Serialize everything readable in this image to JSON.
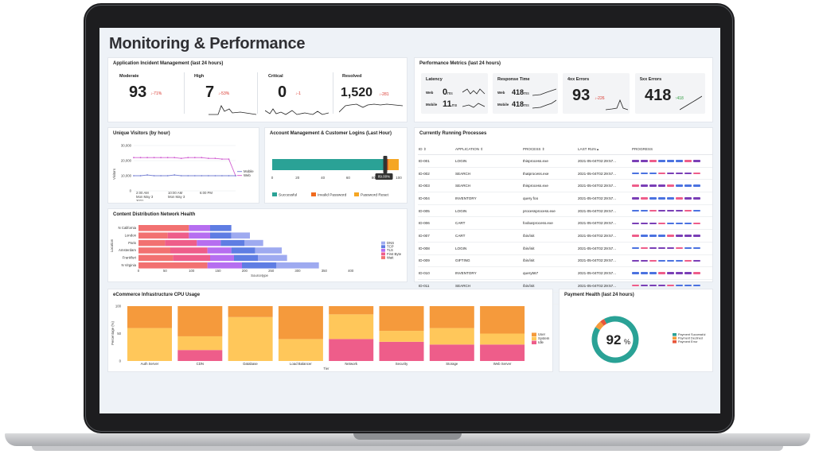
{
  "title": "Monitoring & Performance",
  "incident": {
    "title": "Application Incident Management (last 24 hours)",
    "kpis": [
      {
        "label": "Moderate",
        "value": "93",
        "delta": "-71%"
      },
      {
        "label": "High",
        "value": "7",
        "delta": "-53%"
      },
      {
        "label": "Critical",
        "value": "0",
        "delta": "-1"
      },
      {
        "label": "Resolved",
        "value": "1,520",
        "delta": "-281"
      }
    ]
  },
  "perf": {
    "title": "Performance Metrics (last 24 hours)",
    "latency": {
      "label": "Latency",
      "rows": [
        {
          "name": "Web",
          "value": "0",
          "unit": "ms"
        },
        {
          "name": "Mobile",
          "value": "11",
          "unit": "ms"
        }
      ]
    },
    "response": {
      "label": "Response Time",
      "rows": [
        {
          "name": "Web",
          "value": "418",
          "unit": "ms"
        },
        {
          "name": "Mobile",
          "value": "418",
          "unit": "ms"
        }
      ]
    },
    "errors4xx": {
      "label": "4xx Errors",
      "value": "93",
      "delta": "-226"
    },
    "errors5xx": {
      "label": "5xx Errors",
      "value": "418",
      "delta": "418"
    }
  },
  "visitors": {
    "title": "Unique Visitors (by hour)",
    "ylabel": "Visitors",
    "yticks": [
      "30,000",
      "20,000",
      "10,000",
      "0"
    ],
    "xticks": [
      {
        "l1": "2:00 AM",
        "l2": "Mon May 3",
        "l3": "2021"
      },
      {
        "l1": "10:00 AM",
        "l2": "Mon May 3",
        "l3": ""
      },
      {
        "l1": "6:00 PM",
        "l2": "",
        "l3": ""
      }
    ],
    "legend": [
      "Mobile",
      "Web"
    ]
  },
  "logins": {
    "title": "Account Management & Customer Logins (Last Hour)",
    "xticks": [
      "0",
      "20",
      "40",
      "60",
      "80",
      "100"
    ],
    "tooltip": "89.00%",
    "legend": [
      "Successful",
      "Invalid Password",
      "Password Reset"
    ]
  },
  "processes": {
    "title": "Currently Running Processes",
    "headers": [
      "ID",
      "APPLICATION",
      "PROCESS",
      "LAST RUN",
      "PROGRESS"
    ],
    "rows": [
      [
        "ID-001",
        "LOGIN",
        "thisprocess.exe",
        "2021-05-04T02:29:57..."
      ],
      [
        "ID-002",
        "SEARCH",
        "thatprocess.exe",
        "2021-05-04T02:29:57..."
      ],
      [
        "ID-003",
        "SEARCH",
        "thisprocess.exe",
        "2021-05-04T02:29:57..."
      ],
      [
        "ID-004",
        "INVENTORY",
        "query foo",
        "2021-05-04T02:29:57..."
      ],
      [
        "ID-005",
        "LOGIN",
        "processprocess.exe",
        "2021-05-04T02:29:57..."
      ],
      [
        "ID-006",
        "CART",
        "foobarprocess.exe",
        "2021-05-04T02:29:57..."
      ],
      [
        "ID-007",
        "CART",
        "/bin/init",
        "2021-05-04T02:29:57..."
      ],
      [
        "ID-008",
        "LOGIN",
        "/bin/init",
        "2021-05-04T02:29:57..."
      ],
      [
        "ID-009",
        "GIFTING",
        "/bin/init",
        "2021-05-04T02:29:57..."
      ],
      [
        "ID-010",
        "INVENTORY",
        "query567",
        "2021-05-04T02:29:57..."
      ],
      [
        "ID-011",
        "SEARCH",
        "/bin/init",
        "2021-05-04T02:29:57..."
      ],
      [
        "ID-012",
        "CHECKOUT",
        "/bin/init",
        "2021-05-04T02:29:57..."
      ]
    ]
  },
  "cdn": {
    "title": "Content Distribution Network Health",
    "ylabel": "Location",
    "xlabel": "Sourcetype",
    "locations": [
      "N California",
      "London",
      "Paris",
      "Amsterdam",
      "Frankfurt",
      "N Virginia"
    ],
    "xticks": [
      "0",
      "50",
      "100",
      "150",
      "200",
      "250",
      "300",
      "350",
      "400"
    ],
    "legend": [
      "DNS",
      "TCP",
      "TLS",
      "First Byte",
      "Wait"
    ]
  },
  "cpu": {
    "title": "eCommerce Infrastructure CPU Usage",
    "ylabel": "Percentage (%)",
    "xlabel": "Tier",
    "yticks": [
      "100",
      "50",
      "0"
    ],
    "legend": [
      "User",
      "System",
      "Idle"
    ]
  },
  "payment": {
    "title": "Payment Health (last 24 hours)",
    "value": "92",
    "unit": "%",
    "legend": [
      "Payment Successful",
      "Payment Declined",
      "Payment Error"
    ]
  },
  "colors": {
    "accent_teal": "#2aa296",
    "error_red": "#d9342b",
    "ok_green": "#2e9b3f",
    "pink": "#ee5d8a",
    "orange": "#f59a3c",
    "yellow": "#ffc75a",
    "purple": "#7a3fb6",
    "blue": "#4b72e0"
  },
  "chart_data": [
    {
      "type": "bar",
      "title": "Content Distribution Network Health",
      "orientation": "horizontal",
      "stacked": true,
      "categories": [
        "N California",
        "London",
        "Paris",
        "Amsterdam",
        "Frankfurt",
        "N Virginia"
      ],
      "series": [
        {
          "name": "Wait",
          "values": [
            95,
            55,
            50,
            60,
            65,
            130
          ]
        },
        {
          "name": "First Byte",
          "values": [
            0,
            40,
            60,
            70,
            70,
            0
          ]
        },
        {
          "name": "TLS",
          "values": [
            40,
            40,
            45,
            45,
            45,
            65
          ]
        },
        {
          "name": "TCP",
          "values": [
            40,
            40,
            45,
            45,
            45,
            65
          ]
        },
        {
          "name": "DNS",
          "values": [
            0,
            35,
            35,
            50,
            55,
            80
          ]
        }
      ],
      "xlabel": "Sourcetype",
      "ylabel": "Location",
      "xlim": [
        0,
        420
      ]
    },
    {
      "type": "bar",
      "title": "eCommerce Infrastructure CPU Usage",
      "stacked": true,
      "categories": [
        "Auth Server",
        "CDN",
        "Database",
        "Load Balancer",
        "Network",
        "Security",
        "Storage",
        "Web Server"
      ],
      "series": [
        {
          "name": "Idle",
          "values": [
            0,
            20,
            0,
            0,
            40,
            35,
            30,
            30
          ]
        },
        {
          "name": "System",
          "values": [
            60,
            25,
            80,
            40,
            45,
            20,
            30,
            20
          ]
        },
        {
          "name": "User",
          "values": [
            40,
            55,
            20,
            60,
            15,
            45,
            40,
            50
          ]
        }
      ],
      "xlabel": "Tier",
      "ylabel": "Percentage (%)",
      "ylim": [
        0,
        100
      ]
    },
    {
      "type": "line",
      "title": "Unique Visitors (by hour)",
      "series": [
        {
          "name": "Web",
          "values": [
            22000,
            22000,
            22000,
            22000,
            22000,
            22000,
            22000,
            21500,
            22000,
            22000,
            22000,
            21500,
            21500,
            21000,
            21000,
            10000
          ]
        },
        {
          "name": "Mobile",
          "values": [
            10000,
            10000,
            10500,
            10000,
            10000,
            10000,
            10500,
            10000,
            10000,
            10000,
            10000,
            10000,
            10000,
            10000,
            10000,
            10000
          ]
        }
      ],
      "ylabel": "Visitors",
      "ylim": [
        0,
        30000
      ]
    },
    {
      "type": "bar",
      "title": "Account Management & Customer Logins (Last Hour)",
      "orientation": "horizontal",
      "stacked": true,
      "series": [
        {
          "name": "Successful",
          "values": [
            89
          ]
        },
        {
          "name": "Invalid Password",
          "values": [
            3
          ]
        },
        {
          "name": "Password Reset",
          "values": [
            8
          ]
        }
      ],
      "xlim": [
        0,
        100
      ]
    },
    {
      "type": "pie",
      "title": "Payment Health (last 24 hours)",
      "labels": [
        "Payment Successful",
        "Payment Declined",
        "Payment Error"
      ],
      "values": [
        92,
        5,
        3
      ]
    }
  ]
}
